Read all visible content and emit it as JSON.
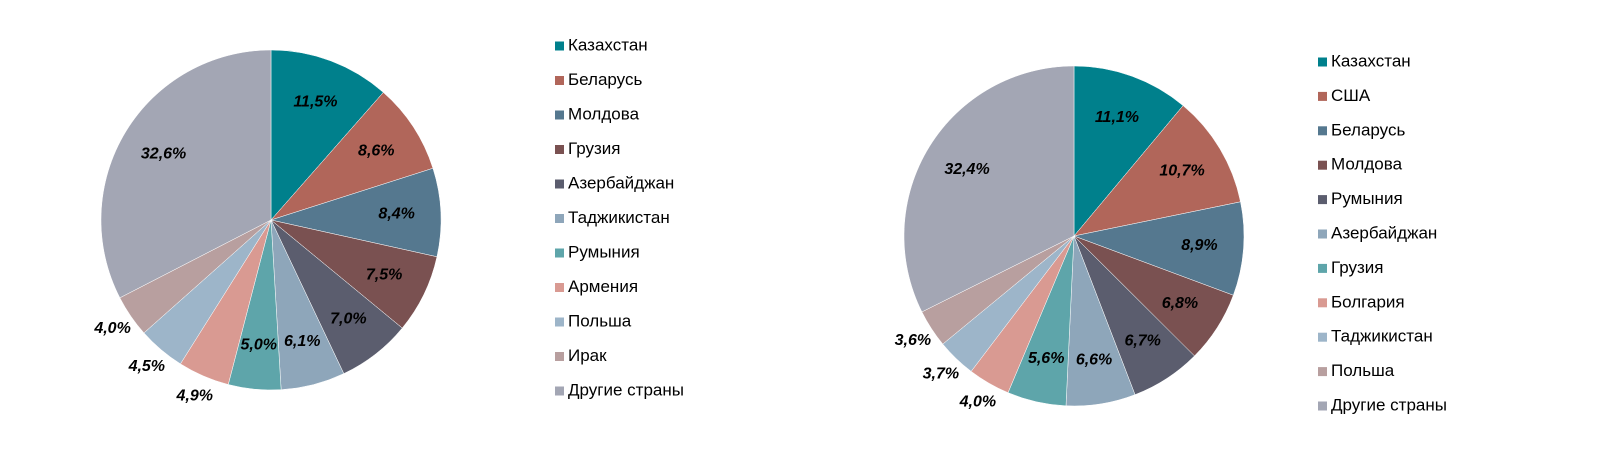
{
  "chart_data": [
    {
      "type": "pie",
      "categories": [
        "Казахстан",
        "Беларусь",
        "Молдова",
        "Грузия",
        "Азербайджан",
        "Таджикистан",
        "Румыния",
        "Армения",
        "Польша",
        "Ирак",
        "Другие страны"
      ],
      "values": [
        11.5,
        8.6,
        8.4,
        7.5,
        7.0,
        6.1,
        5.0,
        4.9,
        4.5,
        4.0,
        32.6
      ],
      "value_labels": [
        "11,5%",
        "8,6%",
        "8,4%",
        "7,5%",
        "7,0%",
        "6,1%",
        "5,0%",
        "4,9%",
        "4,5%",
        "4,0%",
        "32,6%"
      ],
      "colors": [
        "#00808c",
        "#b1665a",
        "#55788f",
        "#7a5151",
        "#5b5d6e",
        "#8ea6ba",
        "#5ea5aa",
        "#d99a92",
        "#9db5c9",
        "#b89f9f",
        "#a3a6b4"
      ]
    },
    {
      "type": "pie",
      "categories": [
        "Казахстан",
        "США",
        "Беларусь",
        "Молдова",
        "Румыния",
        "Азербайджан",
        "Грузия",
        "Болгария",
        "Таджикистан",
        "Польша",
        "Другие страны"
      ],
      "values": [
        11.1,
        10.7,
        8.9,
        6.8,
        6.7,
        6.6,
        5.6,
        4.0,
        3.7,
        3.6,
        32.4
      ],
      "value_labels": [
        "11,1%",
        "10,7%",
        "8,9%",
        "6,8%",
        "6,7%",
        "6,6%",
        "5,6%",
        "4,0%",
        "3,7%",
        "3,6%",
        "32,4%"
      ],
      "colors": [
        "#00808c",
        "#b1665a",
        "#55788f",
        "#7a5151",
        "#5b5d6e",
        "#8ea6ba",
        "#5ea5aa",
        "#d99a92",
        "#9db5c9",
        "#b89f9f",
        "#a3a6b4"
      ]
    }
  ]
}
